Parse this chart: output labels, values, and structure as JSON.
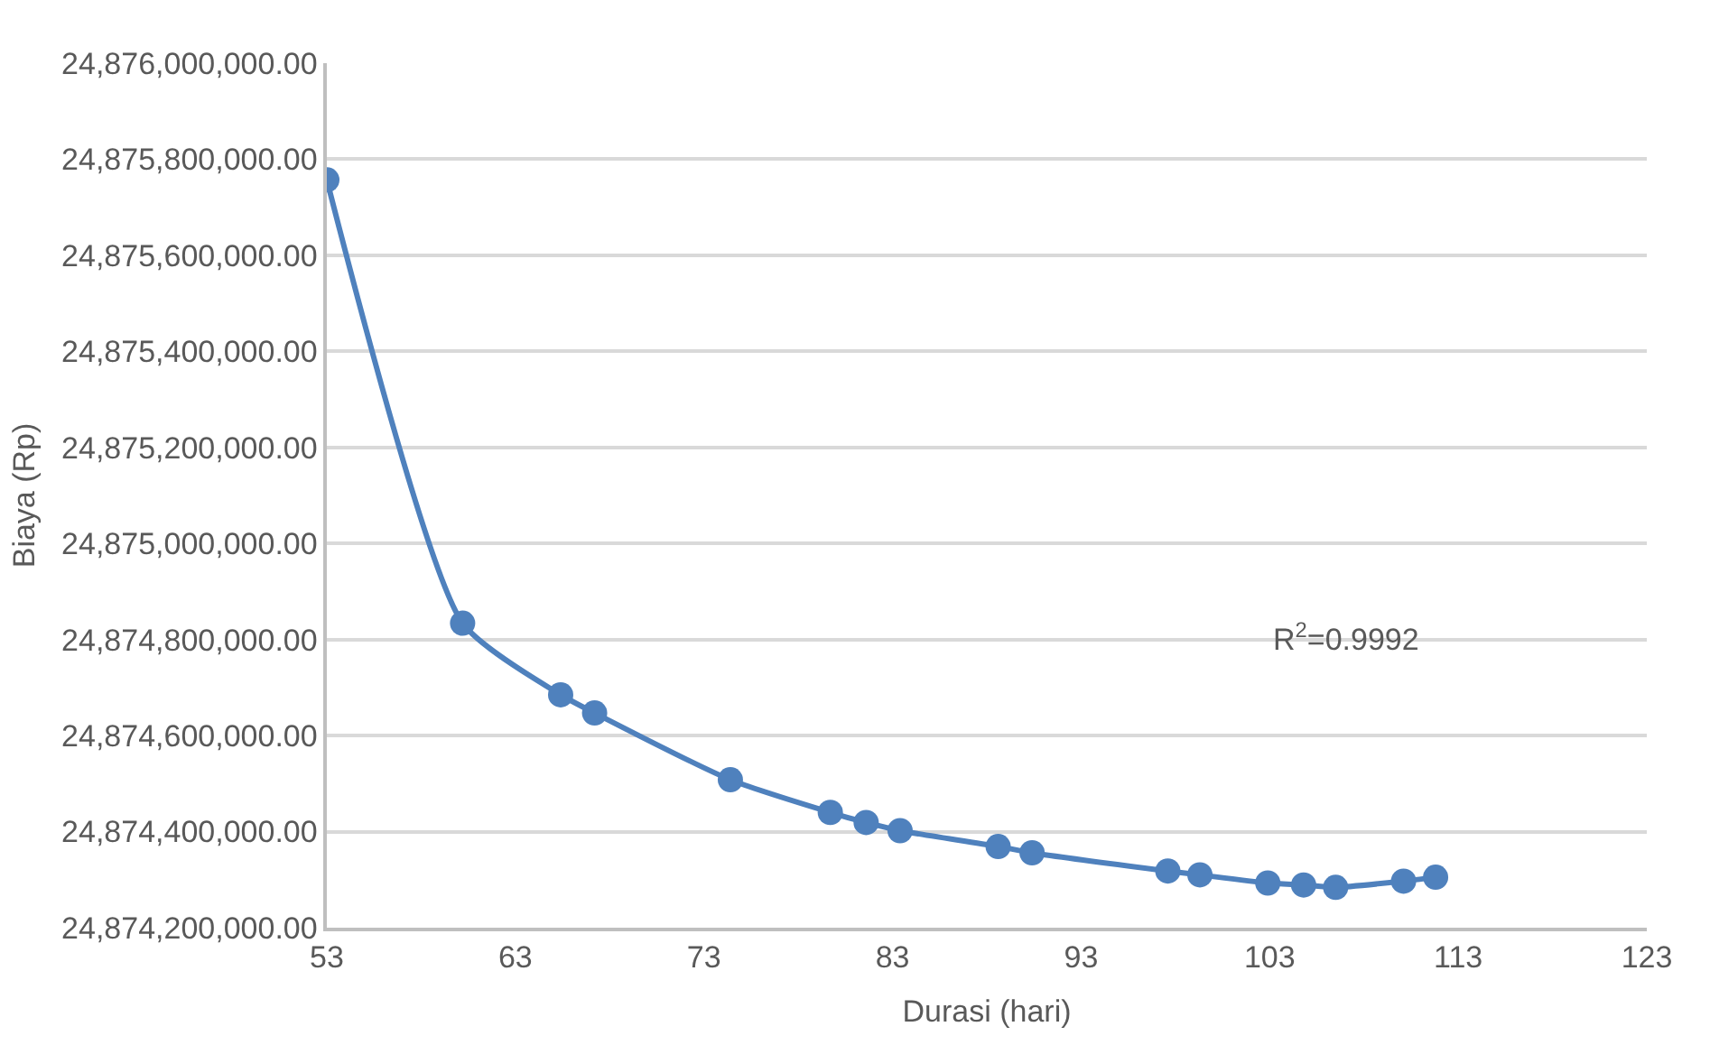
{
  "chart_data": {
    "type": "line",
    "xlabel": "Durasi (hari)",
    "ylabel": "Biaya (Rp)",
    "x": [
      53,
      60.2,
      65.4,
      67.2,
      74.4,
      79.7,
      81.6,
      83.4,
      88.6,
      90.4,
      97.6,
      99.3,
      102.9,
      104.8,
      106.5,
      110.1,
      111.8
    ],
    "series": [
      {
        "color": "#4f81bd",
        "values": [
          24875757000,
          24874834000,
          24874685000,
          24874647000,
          24874508000,
          24874440000,
          24874419000,
          24874402000,
          24874369000,
          24874356000,
          24874318000,
          24874310000,
          24874293000,
          24874289000,
          24874284000,
          24874297000,
          24874305000
        ]
      }
    ],
    "marker": "circle",
    "line_style": "solid",
    "grid": "y",
    "xlim": [
      53,
      123
    ],
    "xticks": [
      53,
      63,
      73,
      83,
      93,
      103,
      113,
      123
    ],
    "ylim": [
      24874200000,
      24876000000
    ],
    "yticks": [
      {
        "value": 24874200000,
        "label": "24,874,200,000.00"
      },
      {
        "value": 24874400000,
        "label": "24,874,400,000.00"
      },
      {
        "value": 24874600000,
        "label": "24,874,600,000.00"
      },
      {
        "value": 24874800000,
        "label": "24,874,800,000.00"
      },
      {
        "value": 24875000000,
        "label": "24,875,000,000.00"
      },
      {
        "value": 24875200000,
        "label": "24,875,200,000.00"
      },
      {
        "value": 24875400000,
        "label": "24,875,400,000.00"
      },
      {
        "value": 24875600000,
        "label": "24,875,600,000.00"
      },
      {
        "value": 24875800000,
        "label": "24,875,800,000.00"
      },
      {
        "value": 24876000000,
        "label": "24,876,000,000.00"
      }
    ],
    "annotations": [
      "R$^{2}$=0.9992"
    ]
  }
}
